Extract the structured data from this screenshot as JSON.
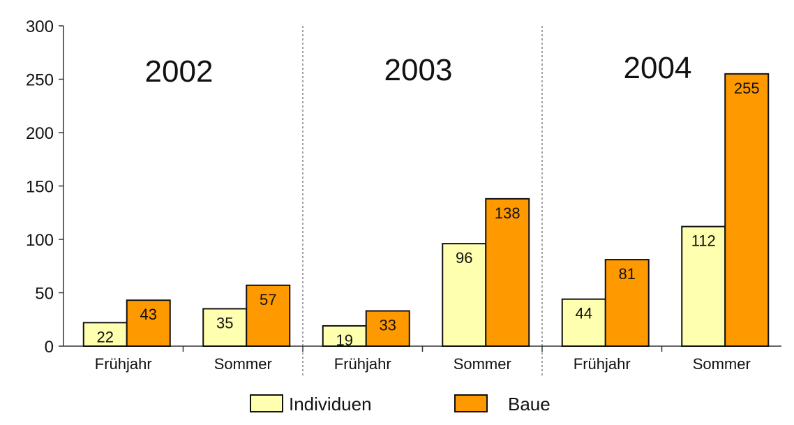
{
  "chart_data": {
    "type": "bar",
    "groups": [
      {
        "year": "2002",
        "categories": [
          "Frühjahr",
          "Sommer"
        ]
      },
      {
        "year": "2003",
        "categories": [
          "Frühjahr",
          "Sommer"
        ]
      },
      {
        "year": "2004",
        "categories": [
          "Frühjahr",
          "Sommer"
        ]
      }
    ],
    "categories": [
      "Frühjahr",
      "Sommer",
      "Frühjahr",
      "Sommer",
      "Frühjahr",
      "Sommer"
    ],
    "series": [
      {
        "name": "Individuen",
        "color": "#FFFFB0",
        "values": [
          22,
          35,
          19,
          96,
          44,
          112
        ]
      },
      {
        "name": "Baue",
        "color": "#FF9900",
        "values": [
          43,
          57,
          33,
          138,
          81,
          255
        ]
      }
    ],
    "ylim": [
      0,
      300
    ],
    "yticks": [
      0,
      50,
      100,
      150,
      200,
      250,
      300
    ],
    "legend_position": "bottom",
    "grid": false,
    "group_separators": "dashed"
  }
}
